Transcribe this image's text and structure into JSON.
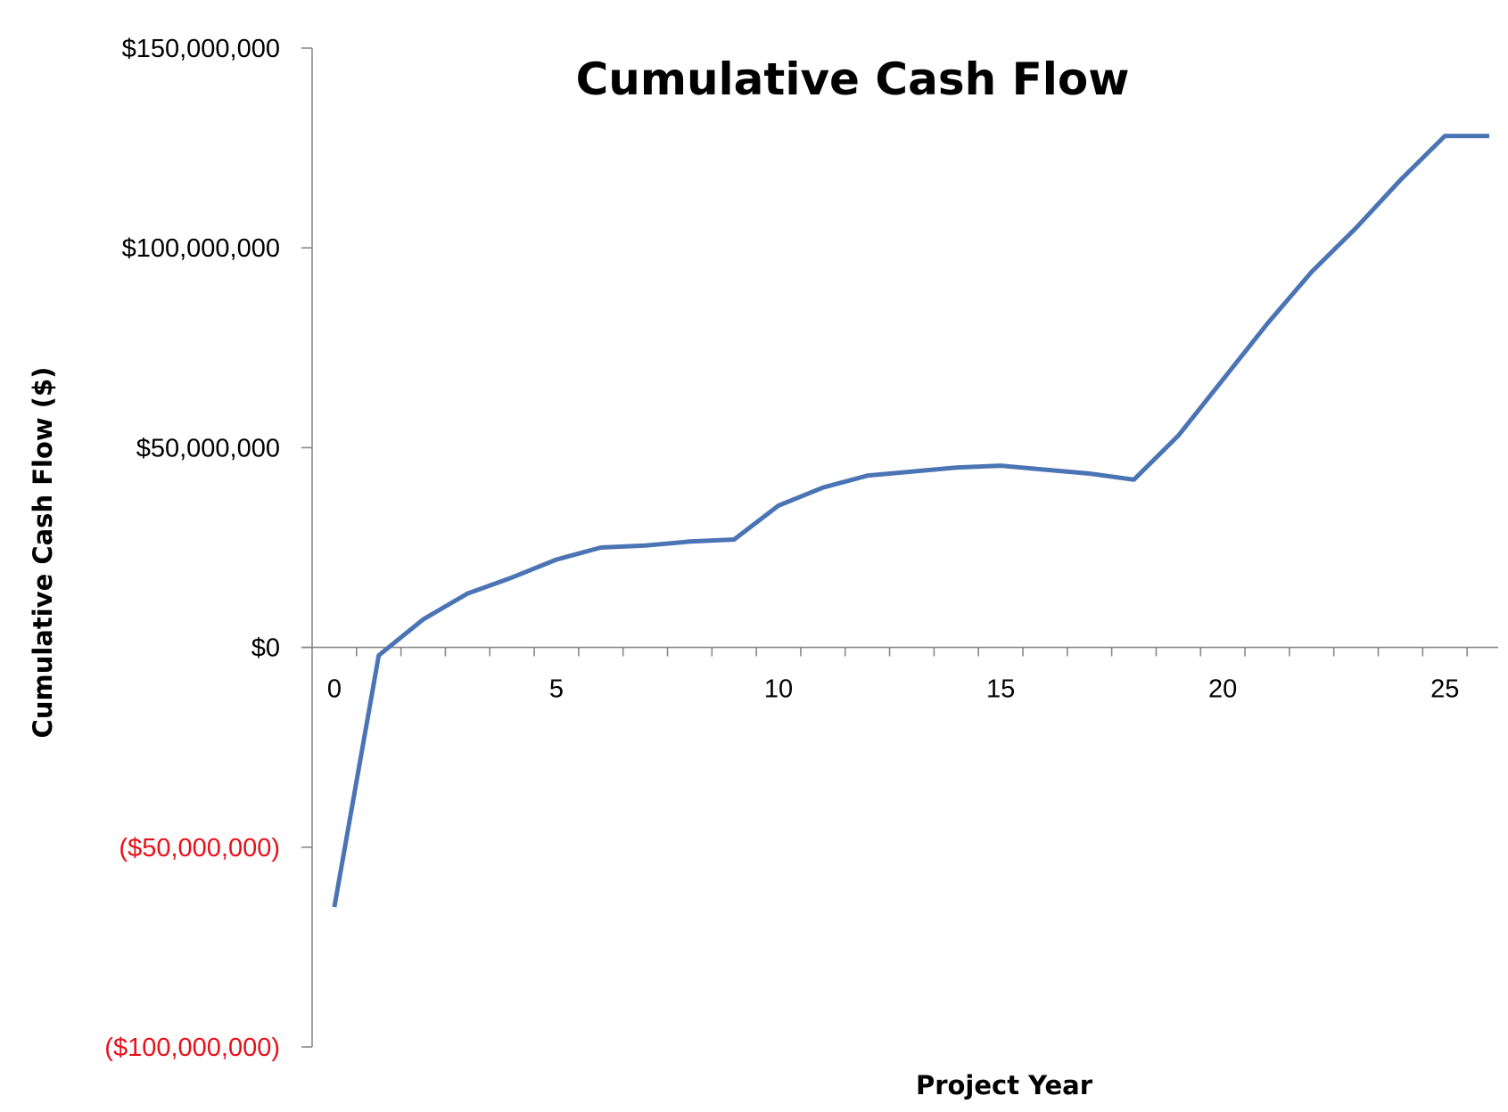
{
  "chart_data": {
    "type": "line",
    "title": "Cumulative Cash Flow",
    "xlabel": "Project Year",
    "ylabel": "Cumulative Cash Flow ($)",
    "xlim": [
      -0.5,
      26.2
    ],
    "ylim": [
      -100000000,
      150000000
    ],
    "x_ticks": [
      0,
      5,
      10,
      15,
      20,
      25
    ],
    "x_tick_labels": [
      "0",
      "5",
      "10",
      "15",
      "20",
      "25"
    ],
    "y_ticks": [
      -100000000,
      -50000000,
      0,
      50000000,
      100000000,
      150000000
    ],
    "y_tick_labels": [
      "($100,000,000)",
      "($50,000,000)",
      "$0",
      "$50,000,000",
      "$100,000,000",
      "$150,000,000"
    ],
    "negative_label_color": "#e8101a",
    "positive_label_color": "#000000",
    "line_color": "#4a74b4",
    "axis_color": "#888888",
    "grid": false,
    "legend": "none",
    "series": [
      {
        "x": [
          0,
          1,
          2,
          3,
          4,
          5,
          6,
          7,
          8,
          9,
          10,
          11,
          12,
          13,
          14,
          15,
          16,
          17,
          18,
          19,
          20,
          21,
          22,
          23,
          24,
          25,
          26
        ],
        "values": [
          -65000000,
          -2000000,
          7000000,
          13500000,
          17500000,
          22000000,
          25000000,
          25500000,
          26500000,
          27000000,
          35500000,
          40000000,
          43000000,
          44000000,
          45000000,
          45500000,
          44500000,
          43500000,
          42000000,
          53000000,
          67000000,
          81000000,
          94000000,
          105000000,
          117000000,
          128000000,
          128000000
        ]
      }
    ]
  }
}
